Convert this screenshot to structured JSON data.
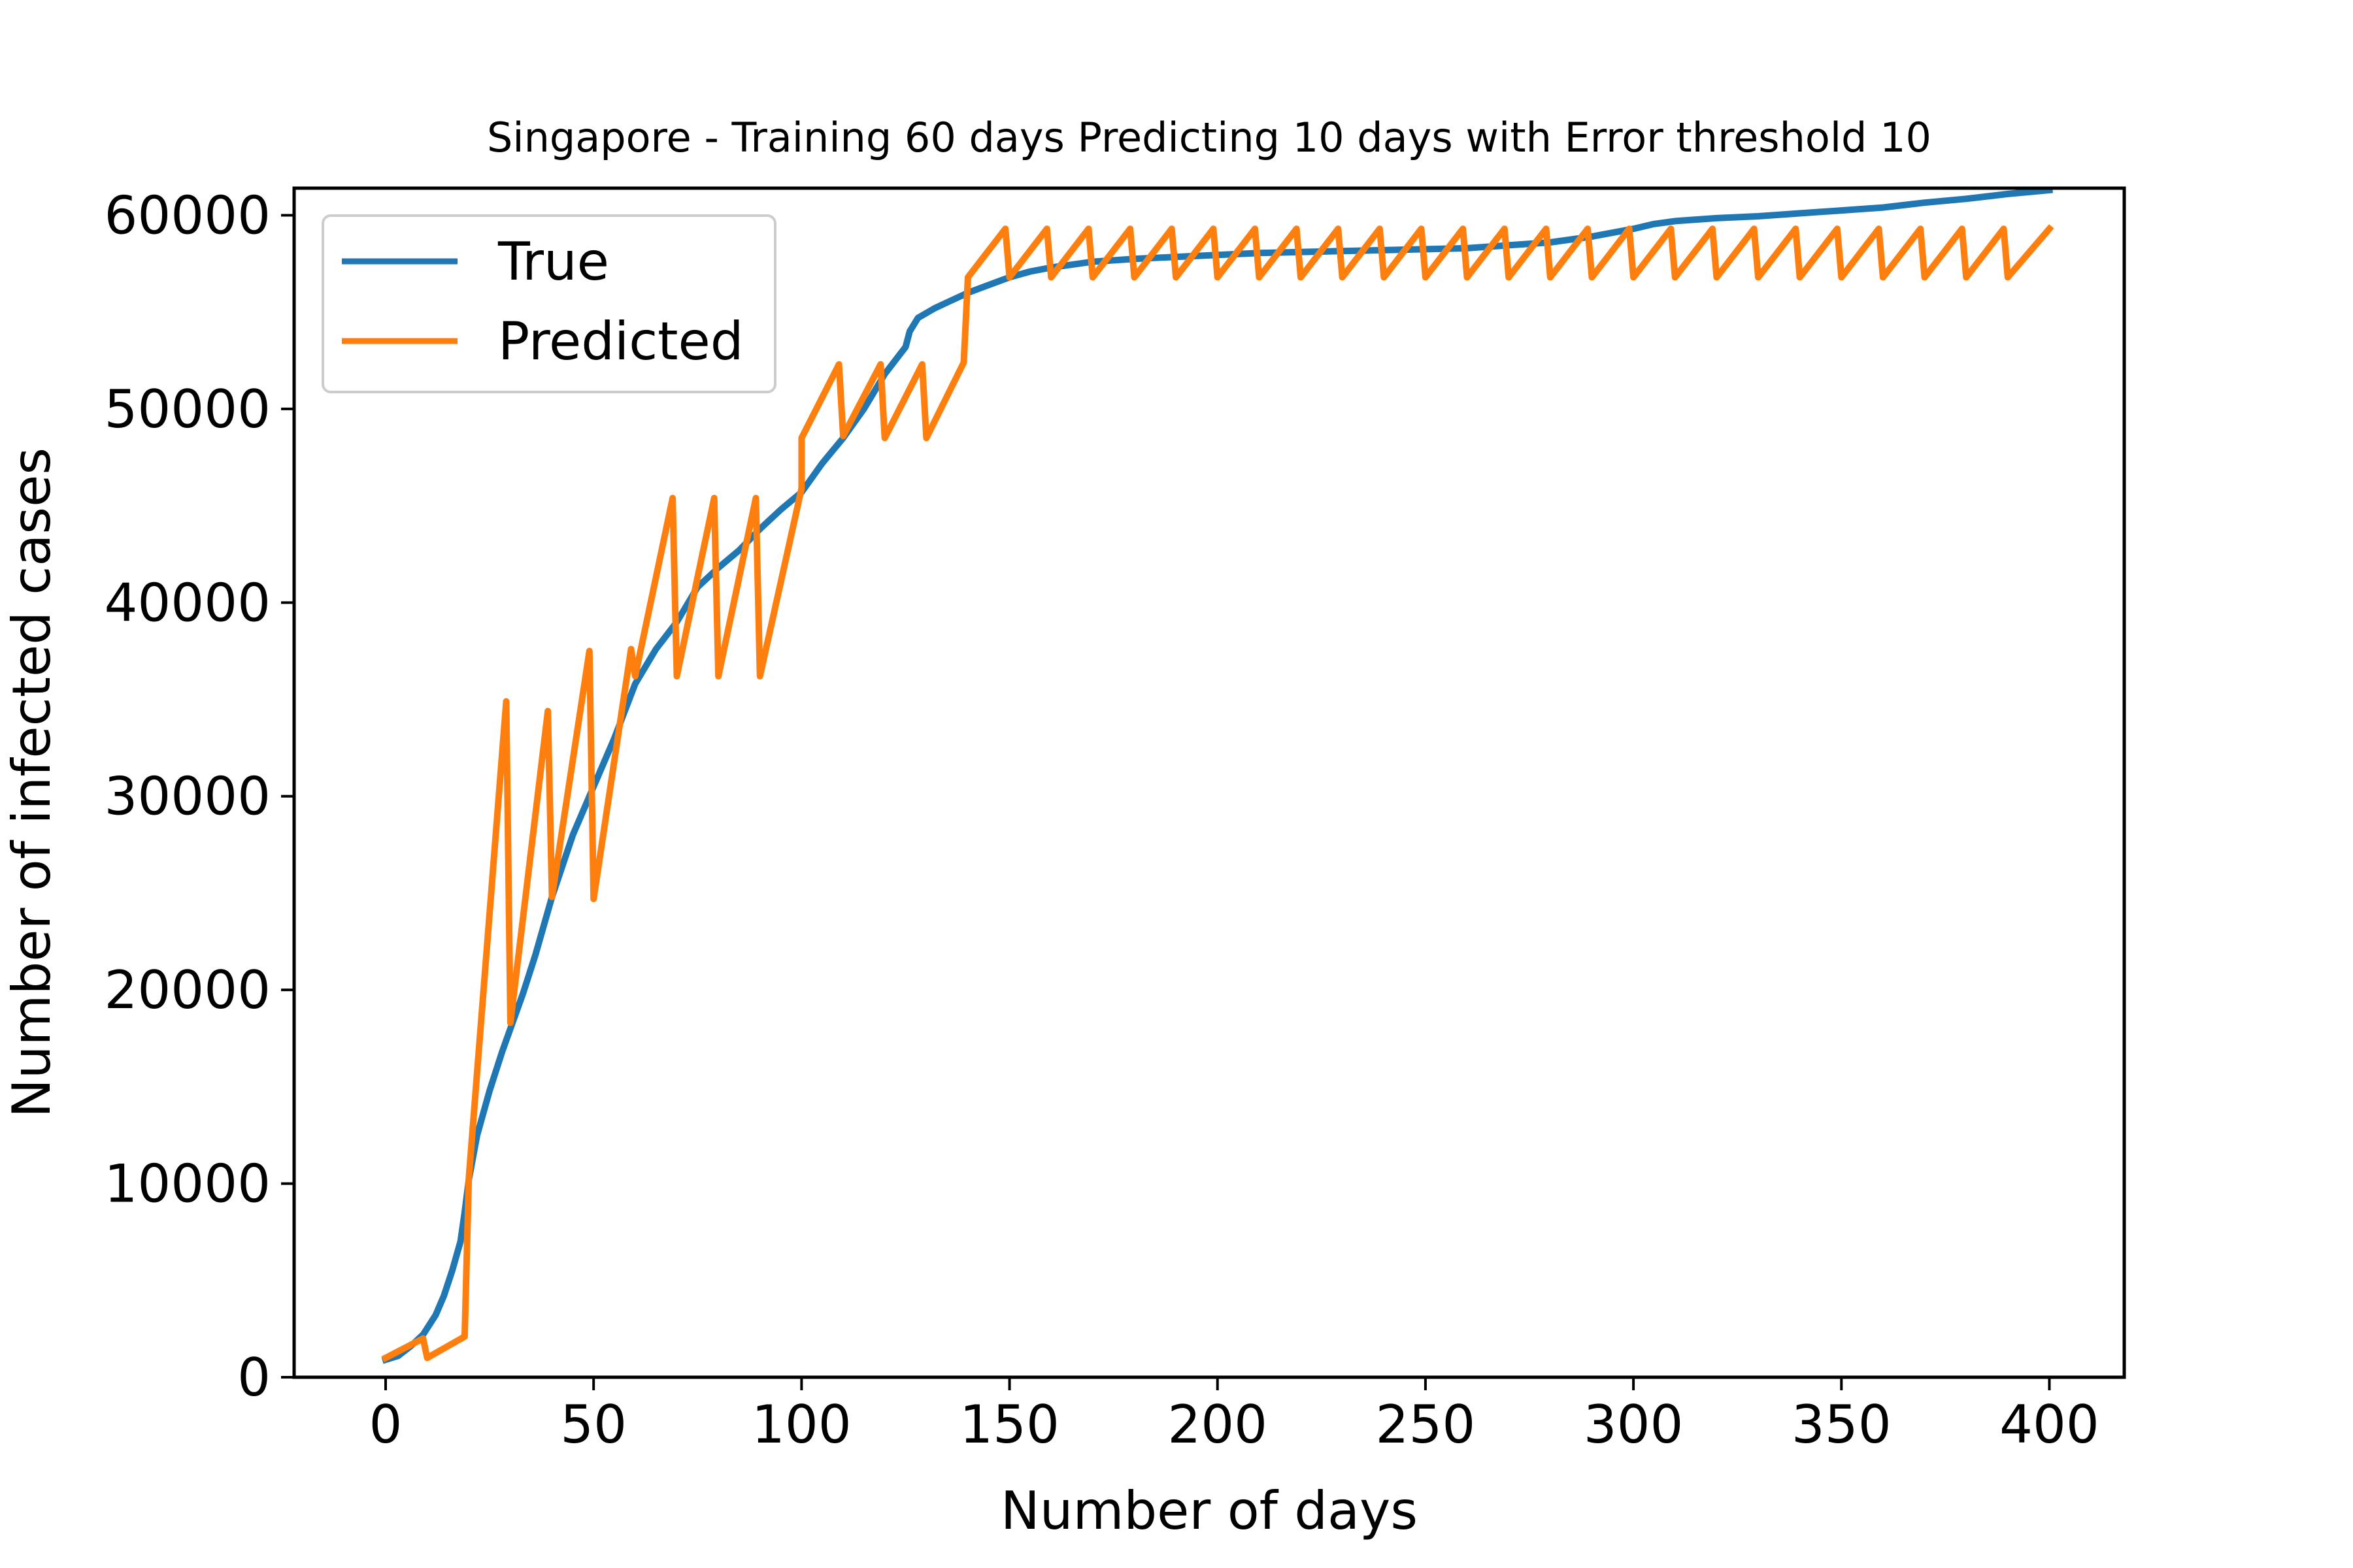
{
  "chart_data": {
    "type": "line",
    "title": "Singapore - Training 60 days Predicting 10 days with Error threshold 10",
    "xlabel": "Number of days",
    "ylabel": "Number of infected cases",
    "xlim": [
      -22,
      418
    ],
    "ylim": [
      0,
      61400
    ],
    "xticks": [
      "0",
      "50",
      "100",
      "150",
      "200",
      "250",
      "300",
      "350",
      "400"
    ],
    "yticks": [
      "0",
      "10000",
      "20000",
      "30000",
      "40000",
      "50000",
      "60000"
    ],
    "grid": false,
    "legend_position": "upper-left",
    "series": [
      {
        "name": "True",
        "color": "#1f77b4",
        "points": [
          [
            0,
            900
          ],
          [
            3,
            1100
          ],
          [
            6,
            1600
          ],
          [
            9,
            2200
          ],
          [
            12,
            3200
          ],
          [
            14,
            4200
          ],
          [
            16,
            5500
          ],
          [
            18,
            7000
          ],
          [
            19,
            8500
          ],
          [
            20,
            10200
          ],
          [
            22,
            12500
          ],
          [
            25,
            14800
          ],
          [
            28,
            16800
          ],
          [
            30,
            18000
          ],
          [
            33,
            19800
          ],
          [
            36,
            21800
          ],
          [
            40,
            24800
          ],
          [
            45,
            28000
          ],
          [
            50,
            30500
          ],
          [
            55,
            33000
          ],
          [
            60,
            35800
          ],
          [
            65,
            37600
          ],
          [
            70,
            39000
          ],
          [
            75,
            40800
          ],
          [
            80,
            41800
          ],
          [
            85,
            42700
          ],
          [
            90,
            43800
          ],
          [
            95,
            44800
          ],
          [
            100,
            45700
          ],
          [
            105,
            47200
          ],
          [
            110,
            48500
          ],
          [
            115,
            50000
          ],
          [
            120,
            51800
          ],
          [
            125,
            53200
          ],
          [
            126,
            54000
          ],
          [
            128,
            54700
          ],
          [
            132,
            55200
          ],
          [
            135,
            55500
          ],
          [
            140,
            56000
          ],
          [
            145,
            56400
          ],
          [
            150,
            56800
          ],
          [
            155,
            57100
          ],
          [
            160,
            57300
          ],
          [
            170,
            57600
          ],
          [
            180,
            57750
          ],
          [
            190,
            57850
          ],
          [
            200,
            57950
          ],
          [
            210,
            58050
          ],
          [
            220,
            58100
          ],
          [
            230,
            58150
          ],
          [
            240,
            58200
          ],
          [
            250,
            58250
          ],
          [
            260,
            58300
          ],
          [
            270,
            58450
          ],
          [
            280,
            58600
          ],
          [
            290,
            58900
          ],
          [
            300,
            59300
          ],
          [
            305,
            59550
          ],
          [
            310,
            59700
          ],
          [
            320,
            59850
          ],
          [
            330,
            59950
          ],
          [
            340,
            60100
          ],
          [
            350,
            60250
          ],
          [
            360,
            60400
          ],
          [
            370,
            60650
          ],
          [
            380,
            60850
          ],
          [
            390,
            61100
          ],
          [
            400,
            61300
          ]
        ]
      },
      {
        "name": "Predicted",
        "color": "#ff7f0e",
        "points": [
          [
            0,
            1000
          ],
          [
            9,
            2000
          ],
          [
            10,
            1000
          ],
          [
            19,
            2100
          ],
          [
            20,
            10300
          ],
          [
            29,
            34900
          ],
          [
            30,
            18300
          ],
          [
            39,
            34400
          ],
          [
            40,
            24800
          ],
          [
            49,
            37500
          ],
          [
            50,
            24700
          ],
          [
            59,
            37600
          ],
          [
            60,
            36200
          ],
          [
            69,
            45400
          ],
          [
            70,
            36200
          ],
          [
            79,
            45400
          ],
          [
            80,
            36200
          ],
          [
            89,
            45400
          ],
          [
            90,
            36200
          ],
          [
            100,
            45900
          ],
          [
            100,
            48500
          ],
          [
            109,
            52300
          ],
          [
            110,
            48600
          ],
          [
            119,
            52300
          ],
          [
            120,
            48500
          ],
          [
            129,
            52300
          ],
          [
            130,
            48500
          ],
          [
            139,
            52400
          ],
          [
            140,
            56800
          ],
          [
            149,
            59300
          ],
          [
            150,
            56800
          ],
          [
            159,
            59300
          ],
          [
            160,
            56800
          ],
          [
            169,
            59300
          ],
          [
            170,
            56800
          ],
          [
            179,
            59300
          ],
          [
            180,
            56800
          ],
          [
            189,
            59300
          ],
          [
            190,
            56800
          ],
          [
            199,
            59300
          ],
          [
            200,
            56800
          ],
          [
            209,
            59300
          ],
          [
            210,
            56800
          ],
          [
            219,
            59300
          ],
          [
            220,
            56800
          ],
          [
            229,
            59300
          ],
          [
            230,
            56800
          ],
          [
            239,
            59300
          ],
          [
            240,
            56800
          ],
          [
            249,
            59300
          ],
          [
            250,
            56800
          ],
          [
            259,
            59300
          ],
          [
            260,
            56800
          ],
          [
            269,
            59300
          ],
          [
            270,
            56800
          ],
          [
            279,
            59300
          ],
          [
            280,
            56800
          ],
          [
            289,
            59300
          ],
          [
            290,
            56800
          ],
          [
            299,
            59300
          ],
          [
            300,
            56800
          ],
          [
            309,
            59300
          ],
          [
            310,
            56800
          ],
          [
            319,
            59300
          ],
          [
            320,
            56800
          ],
          [
            329,
            59300
          ],
          [
            330,
            56800
          ],
          [
            339,
            59300
          ],
          [
            340,
            56800
          ],
          [
            349,
            59300
          ],
          [
            350,
            56800
          ],
          [
            359,
            59300
          ],
          [
            360,
            56800
          ],
          [
            369,
            59300
          ],
          [
            370,
            56800
          ],
          [
            379,
            59300
          ],
          [
            380,
            56800
          ],
          [
            389,
            59300
          ],
          [
            390,
            56800
          ],
          [
            400,
            59300
          ]
        ]
      }
    ]
  }
}
